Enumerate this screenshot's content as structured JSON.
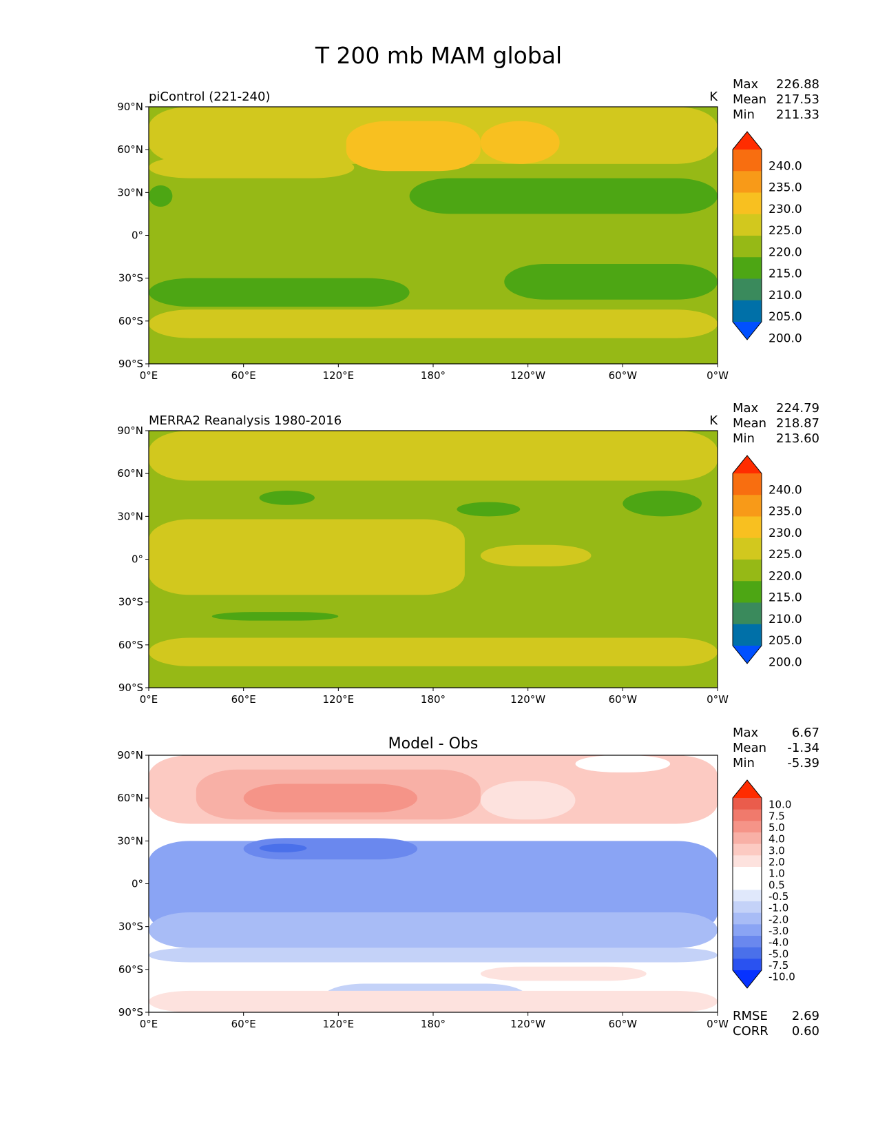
{
  "figure": {
    "title": "T 200 mb MAM global"
  },
  "axes": {
    "lat_ticks": [
      "90°N",
      "60°N",
      "30°N",
      "0°",
      "30°S",
      "60°S",
      "90°S"
    ],
    "lon_ticks": [
      "0°E",
      "60°E",
      "120°E",
      "180°",
      "120°W",
      "60°W",
      "0°W"
    ]
  },
  "colors": {
    "abs_levels": [
      "#0050ff",
      "#0070a8",
      "#3a8a5c",
      "#4da614",
      "#96b916",
      "#d2c81e",
      "#f8c020",
      "#f89a18",
      "#f86e10",
      "#ff2c00"
    ],
    "diff_levels": [
      "#0632ff",
      "#2a52f0",
      "#4a70ea",
      "#6a88ee",
      "#8aa4f4",
      "#a8bcf6",
      "#c4d2f8",
      "#e0e8fb",
      "#ffffff",
      "#ffffff",
      "#fde2de",
      "#fccac2",
      "#f8b0a6",
      "#f59488",
      "#f07a6c",
      "#ea5c4c",
      "#e23c2c",
      "#ff2c00"
    ]
  },
  "panels": [
    {
      "title_left": "piControl (221-240)",
      "units": "K",
      "stats": [
        {
          "label": "Max",
          "value": "226.88"
        },
        {
          "label": "Mean",
          "value": "217.53"
        },
        {
          "label": "Min",
          "value": "211.33"
        }
      ],
      "colorbar_labels": [
        "240.0",
        "235.0",
        "230.0",
        "225.0",
        "220.0",
        "215.0",
        "210.0",
        "205.0",
        "200.0"
      ]
    },
    {
      "title_left": "MERRA2 Reanalysis 1980-2016",
      "units": "K",
      "stats": [
        {
          "label": "Max",
          "value": "224.79"
        },
        {
          "label": "Mean",
          "value": "218.87"
        },
        {
          "label": "Min",
          "value": "213.60"
        }
      ],
      "colorbar_labels": [
        "240.0",
        "235.0",
        "230.0",
        "225.0",
        "220.0",
        "215.0",
        "210.0",
        "205.0",
        "200.0"
      ]
    },
    {
      "title_center": "Model - Obs",
      "stats": [
        {
          "label": "Max",
          "value": "6.67"
        },
        {
          "label": "Mean",
          "value": "-1.34"
        },
        {
          "label": "Min",
          "value": "-5.39"
        }
      ],
      "colorbar_labels": [
        "10.0",
        "7.5",
        "5.0",
        "4.0",
        "3.0",
        "2.0",
        "1.0",
        "0.5",
        "-0.5",
        "-1.0",
        "-2.0",
        "-3.0",
        "-4.0",
        "-5.0",
        "-7.5",
        "-10.0"
      ],
      "metrics": [
        {
          "label": "RMSE",
          "value": "2.69"
        },
        {
          "label": "CORR",
          "value": "0.60"
        }
      ]
    }
  ],
  "chart_data": [
    {
      "type": "heatmap",
      "title": "piControl (221-240)",
      "variable": "T 200 mb MAM",
      "units": "K",
      "xlim": [
        0,
        360
      ],
      "ylim": [
        -90,
        90
      ],
      "levels": [
        200,
        205,
        210,
        215,
        220,
        225,
        230,
        235,
        240
      ],
      "extend": "both",
      "max": 226.88,
      "mean": 217.53,
      "min": 211.33,
      "regions": [
        {
          "lon": [
            0,
            360
          ],
          "lat": [
            -90,
            90
          ],
          "value": 217.5
        },
        {
          "lon": [
            0,
            360
          ],
          "lat": [
            50,
            90
          ],
          "value": 222.5
        },
        {
          "lon": [
            0,
            130
          ],
          "lat": [
            40,
            55
          ],
          "value": 222.5
        },
        {
          "lon": [
            125,
            210
          ],
          "lat": [
            45,
            80
          ],
          "value": 227.5
        },
        {
          "lon": [
            210,
            260
          ],
          "lat": [
            50,
            80
          ],
          "value": 227.5
        },
        {
          "lon": [
            165,
            360
          ],
          "lat": [
            15,
            40
          ],
          "value": 212.5
        },
        {
          "lon": [
            0,
            15
          ],
          "lat": [
            20,
            35
          ],
          "value": 212.5
        },
        {
          "lon": [
            0,
            165
          ],
          "lat": [
            -50,
            -30
          ],
          "value": 212.5
        },
        {
          "lon": [
            225,
            360
          ],
          "lat": [
            -45,
            -20
          ],
          "value": 212.5
        },
        {
          "lon": [
            0,
            360
          ],
          "lat": [
            -72,
            -52
          ],
          "value": 222.5
        }
      ]
    },
    {
      "type": "heatmap",
      "title": "MERRA2 Reanalysis 1980-2016",
      "variable": "T 200 mb MAM",
      "units": "K",
      "xlim": [
        0,
        360
      ],
      "ylim": [
        -90,
        90
      ],
      "levels": [
        200,
        205,
        210,
        215,
        220,
        225,
        230,
        235,
        240
      ],
      "extend": "both",
      "max": 224.79,
      "mean": 218.87,
      "min": 213.6,
      "regions": [
        {
          "lon": [
            0,
            360
          ],
          "lat": [
            -90,
            90
          ],
          "value": 217.5
        },
        {
          "lon": [
            0,
            360
          ],
          "lat": [
            55,
            90
          ],
          "value": 222.5
        },
        {
          "lon": [
            0,
            200
          ],
          "lat": [
            -25,
            28
          ],
          "value": 222.5
        },
        {
          "lon": [
            210,
            280
          ],
          "lat": [
            -5,
            10
          ],
          "value": 222.5
        },
        {
          "lon": [
            0,
            360
          ],
          "lat": [
            -75,
            -55
          ],
          "value": 222.5
        },
        {
          "lon": [
            70,
            105
          ],
          "lat": [
            38,
            48
          ],
          "value": 212.5
        },
        {
          "lon": [
            195,
            235
          ],
          "lat": [
            30,
            40
          ],
          "value": 212.5
        },
        {
          "lon": [
            300,
            350
          ],
          "lat": [
            30,
            48
          ],
          "value": 212.5
        },
        {
          "lon": [
            40,
            120
          ],
          "lat": [
            -43,
            -37
          ],
          "value": 212.5
        }
      ]
    },
    {
      "type": "heatmap",
      "title": "Model - Obs",
      "variable": "T 200 mb MAM difference",
      "units": "K",
      "xlim": [
        0,
        360
      ],
      "ylim": [
        -90,
        90
      ],
      "levels": [
        -10,
        -7.5,
        -5,
        -4,
        -3,
        -2,
        -1,
        -0.5,
        0.5,
        1,
        2,
        3,
        4,
        5,
        7.5,
        10
      ],
      "extend": "both",
      "max": 6.67,
      "mean": -1.34,
      "min": -5.39,
      "rmse": 2.69,
      "corr": 0.6,
      "regions": [
        {
          "lon": [
            0,
            360
          ],
          "lat": [
            -90,
            90
          ],
          "value": 0
        },
        {
          "lon": [
            0,
            360
          ],
          "lat": [
            42,
            90
          ],
          "value": 2.5
        },
        {
          "lon": [
            30,
            210
          ],
          "lat": [
            45,
            80
          ],
          "value": 3.5
        },
        {
          "lon": [
            60,
            170
          ],
          "lat": [
            50,
            70
          ],
          "value": 4.5
        },
        {
          "lon": [
            210,
            270
          ],
          "lat": [
            45,
            72
          ],
          "value": 1.5
        },
        {
          "lon": [
            270,
            330
          ],
          "lat": [
            78,
            90
          ],
          "value": 0
        },
        {
          "lon": [
            0,
            360
          ],
          "lat": [
            -35,
            30
          ],
          "value": -3.5
        },
        {
          "lon": [
            0,
            360
          ],
          "lat": [
            -45,
            -20
          ],
          "value": -2.5
        },
        {
          "lon": [
            60,
            170
          ],
          "lat": [
            17,
            32
          ],
          "value": -4.5
        },
        {
          "lon": [
            70,
            100
          ],
          "lat": [
            22,
            28
          ],
          "value": -5.5
        },
        {
          "lon": [
            0,
            360
          ],
          "lat": [
            -55,
            -45
          ],
          "value": -1.5
        },
        {
          "lon": [
            110,
            240
          ],
          "lat": [
            -90,
            -70
          ],
          "value": -1.5
        },
        {
          "lon": [
            0,
            360
          ],
          "lat": [
            -90,
            -75
          ],
          "value": 1.5
        },
        {
          "lon": [
            210,
            315
          ],
          "lat": [
            -68,
            -58
          ],
          "value": 1.5
        }
      ]
    }
  ]
}
